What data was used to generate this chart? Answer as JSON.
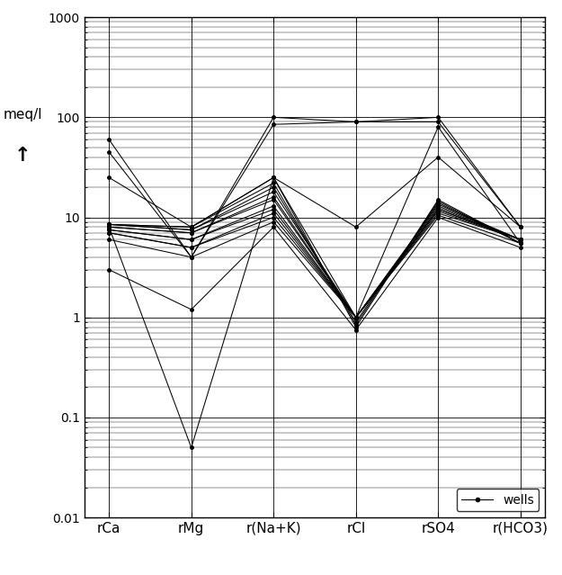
{
  "x_labels": [
    "rCa",
    "rMg",
    "r(Na+K)",
    "rCl",
    "rSO4",
    "r(HCO3)"
  ],
  "ylabel": "meq/l",
  "ylim": [
    0.01,
    1000
  ],
  "legend_label": "wells",
  "series": [
    [
      8,
      0.05,
      25,
      1.0,
      80,
      5.5
    ],
    [
      60,
      4,
      100,
      90,
      100,
      8
    ],
    [
      45,
      4,
      85,
      90,
      90,
      8
    ],
    [
      25,
      8,
      25,
      8,
      40,
      8
    ],
    [
      8.5,
      8,
      25,
      0.8,
      15,
      5.5
    ],
    [
      8.5,
      8,
      22,
      0.85,
      14.5,
      5.5
    ],
    [
      8.5,
      7.5,
      20,
      0.9,
      14,
      5.5
    ],
    [
      8.5,
      7.5,
      18,
      1.0,
      13.5,
      6
    ],
    [
      8,
      7,
      16,
      1.0,
      13,
      6
    ],
    [
      8,
      7,
      15,
      1.0,
      12.5,
      6
    ],
    [
      7.5,
      6,
      13,
      1.0,
      12,
      6
    ],
    [
      7.5,
      6,
      12,
      1.0,
      12,
      6
    ],
    [
      7,
      5,
      11,
      1.0,
      11.5,
      6
    ],
    [
      7,
      5,
      10,
      1.0,
      11,
      6
    ],
    [
      6,
      4,
      9,
      1.0,
      10.5,
      5.5
    ],
    [
      3,
      1.2,
      8,
      0.75,
      10,
      5
    ]
  ],
  "line_color": "#000000",
  "marker": ".",
  "marker_size": 5,
  "line_width": 0.75,
  "bg_color": "#ffffff",
  "grid_major_color": "#000000",
  "grid_minor_color": "#000000",
  "grid_major_lw": 0.6,
  "grid_minor_lw": 0.3,
  "figsize": [
    6.25,
    6.39
  ],
  "dpi": 100,
  "ylabel_fontsize": 11,
  "xlabel_fontsize": 11,
  "tick_fontsize": 10
}
